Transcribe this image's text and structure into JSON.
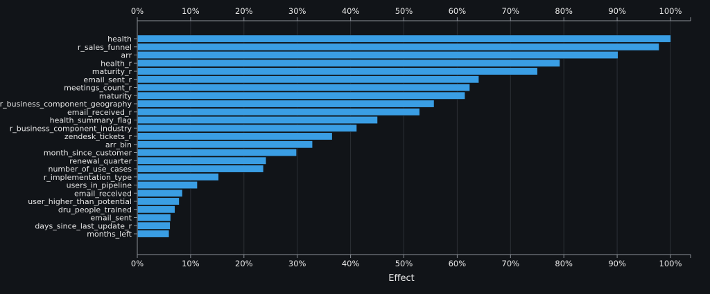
{
  "chart_data": {
    "type": "bar",
    "orientation": "horizontal",
    "xlabel": "Effect",
    "ylabel": "",
    "xlim": [
      0,
      104
    ],
    "x_ticks": [
      "0%",
      "10%",
      "20%",
      "30%",
      "40%",
      "50%",
      "60%",
      "70%",
      "80%",
      "90%",
      "100%"
    ],
    "tick_positions_top": true,
    "tick_positions_bottom": true,
    "grid": true,
    "bar_color": "#3a9ee4",
    "background": "#111418",
    "categories": [
      "health",
      "r_sales_funnel",
      "arr",
      "health_r",
      "maturity_r",
      "email_sent_r",
      "meetings_count_r",
      "maturity",
      "r_business_component_geography",
      "email_received_r",
      "health_summary_flag",
      "r_business_component_industry",
      "zendesk_tickets_r",
      "arr_bin",
      "month_since_customer",
      "renewal_quarter",
      "number_of_use_cases",
      "r_implementation_type",
      "users_in_pipeline",
      "email_received",
      "user_higher_than_potential",
      "dru_people_trained",
      "email_sent",
      "days_since_last_update_r",
      "months_left"
    ],
    "values": [
      100,
      97.8,
      90.1,
      79.2,
      75.0,
      64.0,
      62.3,
      61.4,
      55.6,
      52.9,
      45.0,
      41.1,
      36.5,
      32.8,
      29.8,
      24.1,
      23.6,
      15.2,
      11.2,
      8.4,
      7.8,
      7.0,
      6.2,
      6.1,
      5.9
    ]
  }
}
